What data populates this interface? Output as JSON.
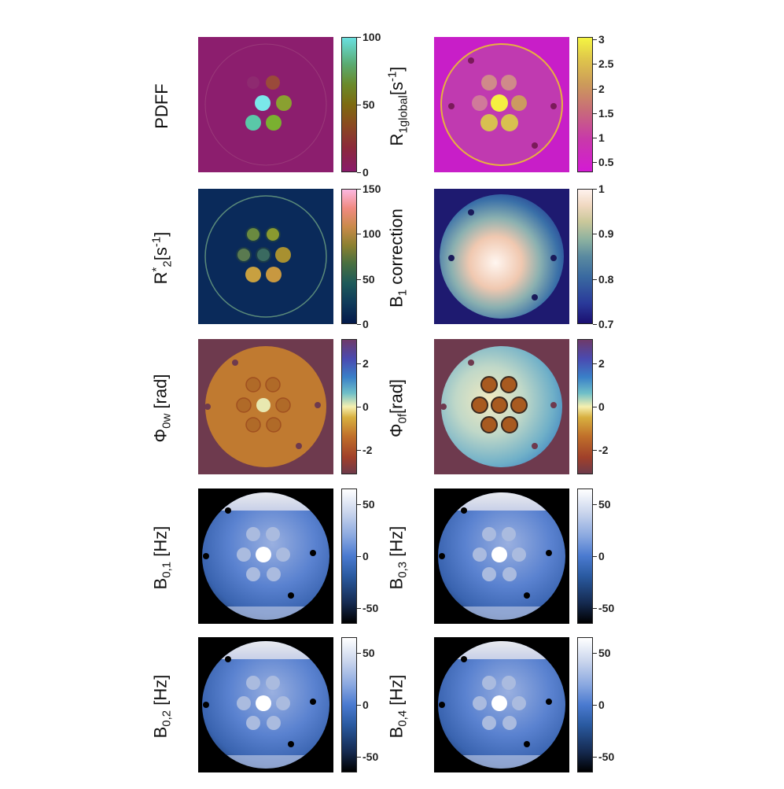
{
  "panels": [
    {
      "id": "pdff",
      "label": "PDFF",
      "ticks": [
        "100",
        "50",
        "0"
      ],
      "colormap": "pdff",
      "tick_values": [
        100,
        50,
        0
      ],
      "range": [
        0,
        100
      ]
    },
    {
      "id": "r1",
      "label_main": "R",
      "label_sub": "1global",
      "label_tail": "[s",
      "label_sup": "-1",
      "label_close": "]",
      "ticks": [
        "3",
        "2.5",
        "2",
        "1.5",
        "1",
        "0.5"
      ],
      "tick_values": [
        3,
        2.5,
        2,
        1.5,
        1,
        0.5
      ],
      "range": [
        0.3,
        3.05
      ],
      "colormap": "magenta-yellow"
    },
    {
      "id": "r2s",
      "label_main": "R",
      "label_sup1": "*",
      "label_sub": "2",
      "label_tail": "[s",
      "label_sup": "-1",
      "label_close": "]",
      "ticks": [
        "150",
        "100",
        "50",
        "0"
      ],
      "tick_values": [
        150,
        100,
        50,
        0
      ],
      "range": [
        0,
        150
      ],
      "colormap": "batlow"
    },
    {
      "id": "b1",
      "label_main": "B",
      "label_sub": "1",
      "label_tail": " correction",
      "ticks": [
        "1",
        "0.9",
        "0.8",
        "0.7"
      ],
      "tick_values": [
        1,
        0.9,
        0.8,
        0.7
      ],
      "range": [
        0.7,
        1
      ],
      "colormap": "davos"
    },
    {
      "id": "phi0w",
      "label_main": "Φ",
      "label_sub": "0w",
      "label_tail": " [rad]",
      "ticks": [
        "2",
        "0",
        "-2"
      ],
      "tick_values": [
        2,
        0,
        -2
      ],
      "range": [
        -3.14,
        3.14
      ],
      "colormap": "phase"
    },
    {
      "id": "phi0f",
      "label_main": "Φ",
      "label_sub": "0f",
      "label_tail": "[rad]",
      "ticks": [
        "2",
        "0",
        "-2"
      ],
      "tick_values": [
        2,
        0,
        -2
      ],
      "range": [
        -3.14,
        3.14
      ],
      "colormap": "phase"
    },
    {
      "id": "b01",
      "label_main": "B",
      "label_sub": "0,1",
      "label_tail": " [Hz]",
      "ticks": [
        "50",
        "0",
        "-50"
      ],
      "tick_values": [
        50,
        0,
        -50
      ],
      "range": [
        -65,
        65
      ],
      "colormap": "blue-white"
    },
    {
      "id": "b03",
      "label_main": "B",
      "label_sub": "0,3",
      "label_tail": " [Hz]",
      "ticks": [
        "50",
        "0",
        "-50"
      ],
      "tick_values": [
        50,
        0,
        -50
      ],
      "range": [
        -65,
        65
      ],
      "colormap": "blue-white"
    },
    {
      "id": "b02",
      "label_main": "B",
      "label_sub": "0,2",
      "label_tail": " [Hz]",
      "ticks": [
        "50",
        "0",
        "-50"
      ],
      "tick_values": [
        50,
        0,
        -50
      ],
      "range": [
        -65,
        65
      ],
      "colormap": "blue-white"
    },
    {
      "id": "b04",
      "label_main": "B",
      "label_sub": "0,4",
      "label_tail": " [Hz]",
      "ticks": [
        "50",
        "0",
        "-50"
      ],
      "tick_values": [
        50,
        0,
        -50
      ],
      "range": [
        -65,
        65
      ],
      "colormap": "blue-white"
    }
  ]
}
